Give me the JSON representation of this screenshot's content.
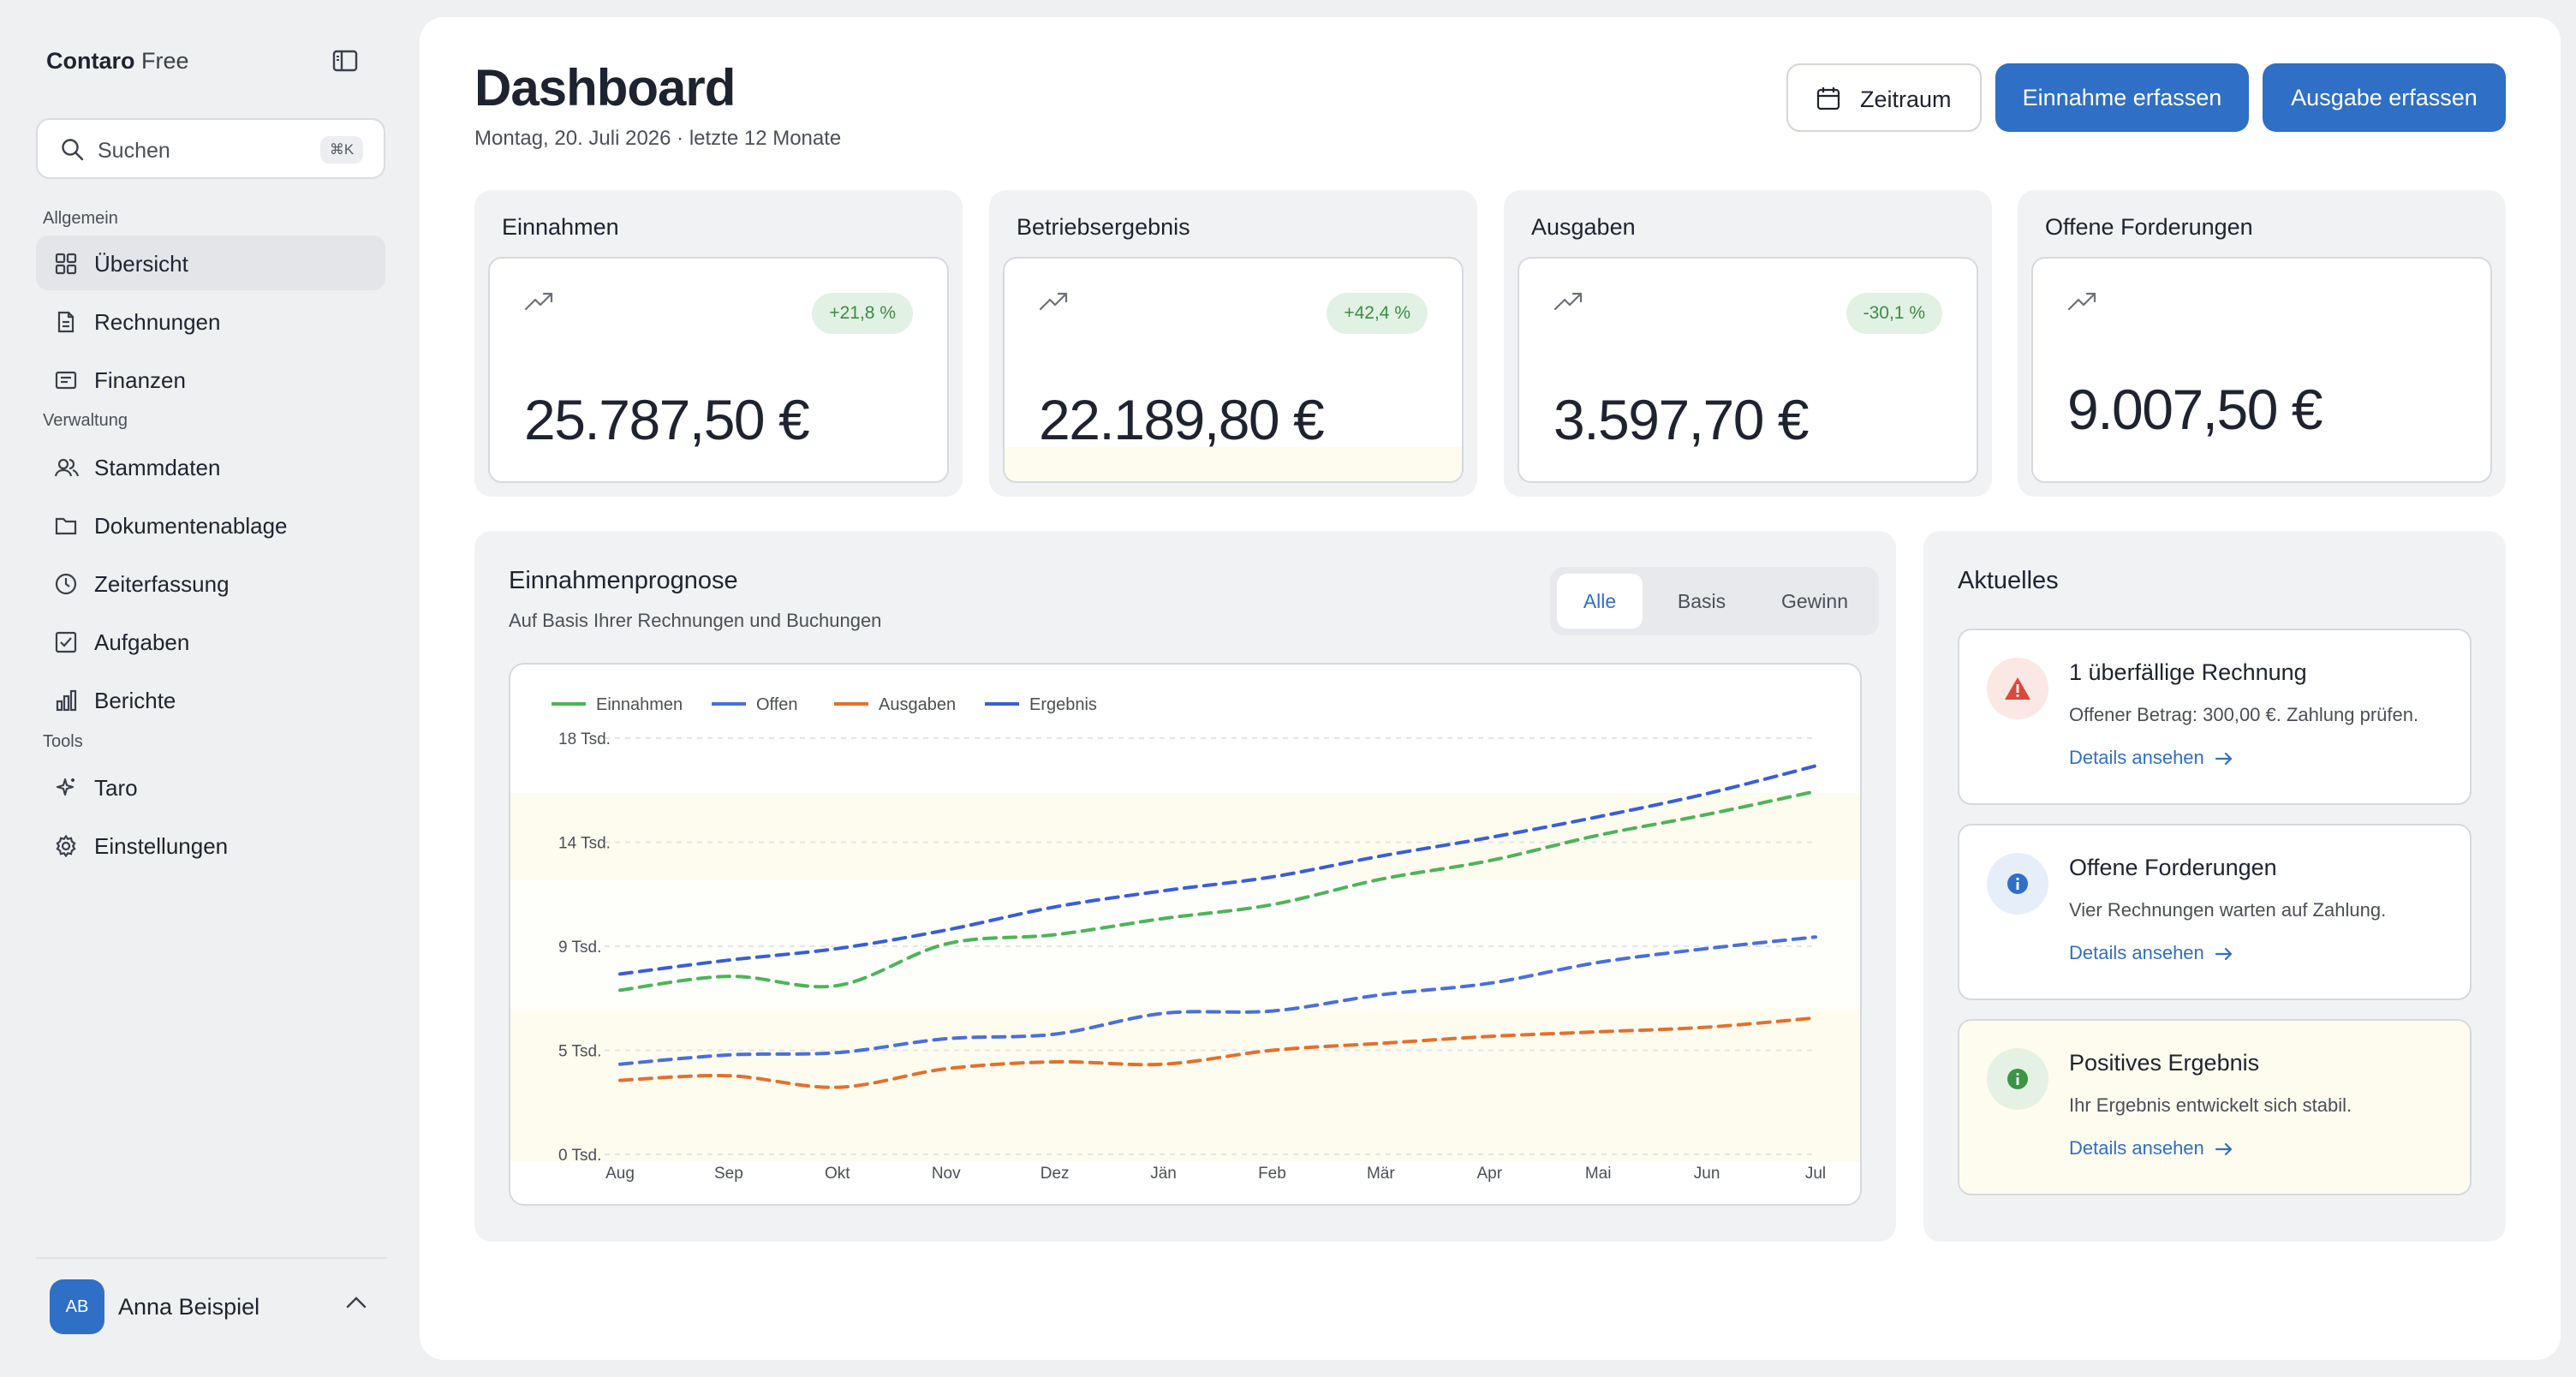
{
  "sidebar": {
    "brand": {
      "name": "Contaro",
      "plan": "Free"
    },
    "search": {
      "placeholder": "Suchen",
      "shortcut": "⌘K"
    },
    "sections": [
      {
        "label": "Allgemein",
        "items": [
          {
            "label": "Übersicht",
            "icon": "grid-icon",
            "active": true
          },
          {
            "label": "Rechnungen",
            "icon": "document-icon"
          },
          {
            "label": "Finanzen",
            "icon": "ledger-icon"
          }
        ]
      },
      {
        "label": "Verwaltung",
        "items": [
          {
            "label": "Stammdaten",
            "icon": "users-icon"
          },
          {
            "label": "Dokumentenablage",
            "icon": "folder-icon"
          },
          {
            "label": "Zeiterfassung",
            "icon": "clock-icon"
          },
          {
            "label": "Aufgaben",
            "icon": "checkbox-icon"
          },
          {
            "label": "Berichte",
            "icon": "bar-chart-icon"
          }
        ]
      },
      {
        "label": "Tools",
        "items": [
          {
            "label": "Taro",
            "icon": "sparkle-icon"
          },
          {
            "label": "Einstellungen",
            "icon": "gear-icon"
          }
        ]
      }
    ],
    "user": {
      "initials": "AB",
      "name": "Anna Beispiel"
    }
  },
  "header": {
    "title": "Dashboard",
    "subtitle": "Montag, 20. Juli 2026 · letzte 12 Monate",
    "period_button": "Zeitraum",
    "income_button": "Einnahme erfassen",
    "expense_button": "Ausgabe erfassen"
  },
  "kpis": [
    {
      "title": "Einnahmen",
      "badge": "+21,8 %",
      "value": "25.787,50 €"
    },
    {
      "title": "Betriebsergebnis",
      "badge": "+42,4 %",
      "value": "22.189,80 €"
    },
    {
      "title": "Ausgaben",
      "badge": "-30,1 %",
      "value": "3.597,70 €"
    },
    {
      "title": "Offene Forderungen",
      "badge": "",
      "value": "9.007,50 €"
    }
  ],
  "forecast": {
    "title": "Einnahmenprognose",
    "subtitle": "Auf Basis Ihrer Rechnungen und Buchungen",
    "tabs": [
      "Alle",
      "Basis",
      "Gewinn"
    ],
    "active_tab": "Alle"
  },
  "chart_data": {
    "type": "line",
    "x": [
      "Aug",
      "Sep",
      "Okt",
      "Nov",
      "Dez",
      "Jän",
      "Feb",
      "Mär",
      "Apr",
      "Mai",
      "Jun",
      "Jul"
    ],
    "y_ticks": [
      "0 Tsd.",
      "5 Tsd.",
      "9 Tsd.",
      "14 Tsd.",
      "18 Tsd."
    ],
    "ylim": [
      0,
      18000
    ],
    "legend_position": "top-left",
    "line_style": "dashed",
    "series": [
      {
        "name": "Einnahmen",
        "color": "#4fb35a",
        "values": [
          7100,
          7700,
          7300,
          9100,
          9500,
          10200,
          10800,
          11900,
          12700,
          13800,
          14700,
          15700
        ]
      },
      {
        "name": "Offen",
        "color": "#4a6fdc",
        "values": [
          3900,
          4300,
          4400,
          5000,
          5200,
          6100,
          6200,
          6900,
          7400,
          8300,
          8900,
          9400
        ]
      },
      {
        "name": "Ausgaben",
        "color": "#e56f2c",
        "values": [
          3200,
          3400,
          2900,
          3700,
          4000,
          3900,
          4500,
          4800,
          5100,
          5300,
          5500,
          5900
        ]
      },
      {
        "name": "Ergebnis",
        "color": "#3a5ed8",
        "values": [
          7800,
          8400,
          8900,
          9700,
          10700,
          11400,
          12000,
          12900,
          13700,
          14600,
          15600,
          16800
        ]
      }
    ]
  },
  "news": {
    "title": "Aktuelles",
    "items": [
      {
        "title": "1 überfällige Rechnung",
        "text": "Offener Betrag: 300,00 €. Zahlung prüfen.",
        "link": "Details ansehen",
        "icon": "warning-icon",
        "color": "#d94a3a"
      },
      {
        "title": "Offene Forderungen",
        "text": "Vier Rechnungen warten auf Zahlung.",
        "link": "Details ansehen",
        "icon": "info-icon",
        "color": "#2f6fc6"
      },
      {
        "title": "Positives Ergebnis",
        "text": "Ihr Ergebnis entwickelt sich stabil.",
        "link": "Details ansehen",
        "icon": "info-icon",
        "color": "#3d9445"
      }
    ]
  },
  "colors": {
    "accent": "#2f6fc6",
    "badge_bg": "#e1f1e3",
    "badge_text": "#3d8b46"
  }
}
